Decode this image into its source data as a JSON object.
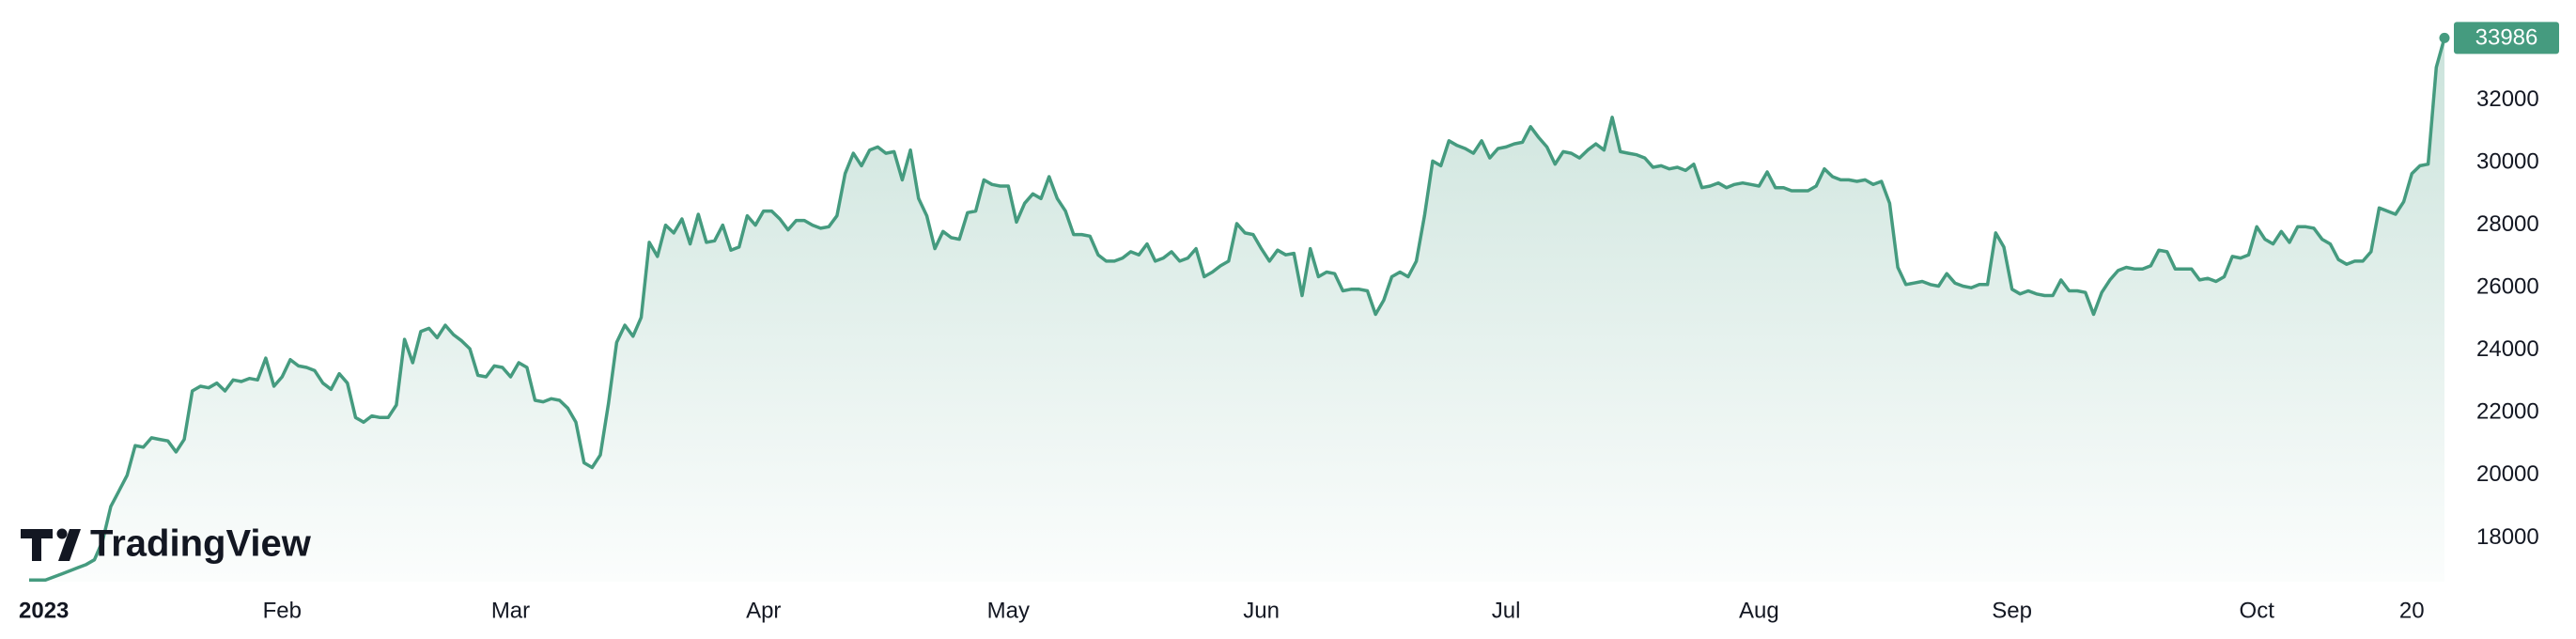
{
  "chart_data": {
    "type": "line",
    "watermark": "TradingView",
    "x": [
      0,
      1,
      2,
      3,
      4,
      5,
      6,
      7,
      8,
      9,
      10,
      11,
      12,
      13,
      14,
      15,
      16,
      17,
      18,
      19,
      20,
      21,
      22,
      23,
      24,
      25,
      26,
      27,
      28,
      29,
      30,
      31,
      32,
      33,
      34,
      35,
      36,
      37,
      38,
      39,
      40,
      41,
      42,
      43,
      44,
      45,
      46,
      47,
      48,
      49,
      50,
      51,
      52,
      53,
      54,
      55,
      56,
      57,
      58,
      59,
      60,
      61,
      62,
      63,
      64,
      65,
      66,
      67,
      68,
      69,
      70,
      71,
      72,
      73,
      74,
      75,
      76,
      77,
      78,
      79,
      80,
      81,
      82,
      83,
      84,
      85,
      86,
      87,
      88,
      89,
      90,
      91,
      92,
      93,
      94,
      95,
      96,
      97,
      98,
      99,
      100,
      101,
      102,
      103,
      104,
      105,
      106,
      107,
      108,
      109,
      110,
      111,
      112,
      113,
      114,
      115,
      116,
      117,
      118,
      119,
      120,
      121,
      122,
      123,
      124,
      125,
      126,
      127,
      128,
      129,
      130,
      131,
      132,
      133,
      134,
      135,
      136,
      137,
      138,
      139,
      140,
      141,
      142,
      143,
      144,
      145,
      146,
      147,
      148,
      149,
      150,
      151,
      152,
      153,
      154,
      155,
      156,
      157,
      158,
      159,
      160,
      161,
      162,
      163,
      164,
      165,
      166,
      167,
      168,
      169,
      170,
      171,
      172,
      173,
      174,
      175,
      176,
      177,
      178,
      179,
      180,
      181,
      182,
      183,
      184,
      185,
      186,
      187,
      188,
      189,
      190,
      191,
      192,
      193,
      194,
      195,
      196,
      197,
      198,
      199,
      200,
      201,
      202,
      203,
      204,
      205,
      206,
      207,
      208,
      209,
      210,
      211,
      212,
      213,
      214,
      215,
      216,
      217,
      218,
      219,
      220,
      221,
      222,
      223,
      224,
      225,
      226,
      227,
      228,
      229,
      230,
      231,
      232,
      233,
      234,
      235,
      236,
      237,
      238,
      239,
      240,
      241,
      242,
      243,
      244,
      245,
      246,
      247,
      248,
      249,
      250,
      251,
      252,
      253,
      254,
      255,
      256,
      257,
      258,
      259,
      260,
      261,
      262,
      263,
      264,
      265,
      266,
      267,
      268,
      269,
      270,
      271,
      272,
      273,
      274,
      275,
      276,
      277,
      278,
      279,
      280,
      281,
      282,
      283,
      284,
      285,
      286,
      287,
      288,
      289,
      290,
      291,
      292,
      293,
      294,
      295,
      296
    ],
    "series": [
      {
        "name": null,
        "color": "#459b7f",
        "values": [
          16650,
          16650,
          16650,
          16750,
          16850,
          16950,
          17050,
          17150,
          17300,
          17900,
          19000,
          19500,
          20000,
          20950,
          20900,
          21200,
          21150,
          21100,
          20750,
          21150,
          22700,
          22850,
          22800,
          22950,
          22700,
          23050,
          23000,
          23100,
          23050,
          23750,
          22850,
          23150,
          23700,
          23500,
          23450,
          23350,
          22950,
          22750,
          23250,
          22950,
          21850,
          21700,
          21900,
          21850,
          21850,
          22250,
          24350,
          23600,
          24600,
          24700,
          24400,
          24800,
          24500,
          24300,
          24050,
          23200,
          23150,
          23500,
          23450,
          23150,
          23600,
          23450,
          22400,
          22350,
          22450,
          22400,
          22150,
          21700,
          20400,
          20250,
          20650,
          22300,
          24250,
          24800,
          24450,
          25050,
          27450,
          27000,
          28000,
          27750,
          28200,
          27400,
          28350,
          27450,
          27500,
          28000,
          27200,
          27300,
          28300,
          28000,
          28450,
          28450,
          28200,
          27850,
          28150,
          28150,
          28000,
          27900,
          27950,
          28300,
          29650,
          30300,
          29900,
          30400,
          30500,
          30300,
          30350,
          29450,
          30400,
          28850,
          28300,
          27250,
          27800,
          27600,
          27550,
          28400,
          28450,
          29450,
          29300,
          29250,
          29250,
          28100,
          28700,
          29000,
          28850,
          29550,
          28850,
          28450,
          27700,
          27700,
          27650,
          27050,
          26850,
          26850,
          26950,
          27150,
          27050,
          27400,
          26850,
          26950,
          27150,
          26850,
          26950,
          27250,
          26350,
          26500,
          26700,
          26850,
          28050,
          27750,
          27700,
          27250,
          26850,
          27200,
          27050,
          27100,
          25750,
          27250,
          26350,
          26500,
          26450,
          25900,
          25950,
          25950,
          25900,
          25150,
          25600,
          26350,
          26500,
          26350,
          26850,
          28300,
          30050,
          29900,
          30700,
          30550,
          30450,
          30300,
          30700,
          30150,
          30450,
          30500,
          30600,
          30650,
          31150,
          30800,
          30500,
          29950,
          30350,
          30300,
          30150,
          30400,
          30600,
          30400,
          31450,
          30350,
          30300,
          30250,
          30150,
          29850,
          29900,
          29800,
          29850,
          29750,
          29950,
          29200,
          29250,
          29350,
          29200,
          29300,
          29350,
          29300,
          29250,
          29700,
          29200,
          29200,
          29100,
          29100,
          29100,
          29250,
          29800,
          29550,
          29450,
          29450,
          29400,
          29450,
          29300,
          29400,
          28700,
          26650,
          26100,
          26150,
          26200,
          26100,
          26050,
          26450,
          26150,
          26050,
          26000,
          26100,
          26100,
          27750,
          27300,
          25950,
          25800,
          25900,
          25800,
          25750,
          25750,
          26250,
          25900,
          25900,
          25850,
          25150,
          25850,
          26250,
          26550,
          26650,
          26600,
          26600,
          26700,
          27200,
          27150,
          26600,
          26600,
          26600,
          26250,
          26300,
          26200,
          26350,
          27000,
          26950,
          27050,
          27950,
          27550,
          27400,
          27800,
          27450,
          27950,
          27950,
          27900,
          27550,
          27400,
          26900,
          26750,
          26850,
          26850,
          27150,
          28550,
          28450,
          28350,
          28750,
          29650,
          29900,
          29950,
          33050,
          33986
        ]
      }
    ],
    "xlim": [
      -1.5,
      296
    ],
    "ylim": [
      16600,
      35200
    ],
    "xticks": [
      {
        "value": 0,
        "label": "2023"
      },
      {
        "value": 31,
        "label": "Feb"
      },
      {
        "value": 59,
        "label": "Mar"
      },
      {
        "value": 90,
        "label": "Apr"
      },
      {
        "value": 120,
        "label": "May"
      },
      {
        "value": 151,
        "label": "Jun"
      },
      {
        "value": 181,
        "label": "Jul"
      },
      {
        "value": 212,
        "label": "Aug"
      },
      {
        "value": 243,
        "label": "Sep"
      },
      {
        "value": 273,
        "label": "Oct"
      },
      {
        "value": 292,
        "label": "20"
      }
    ],
    "yticks": [
      18000,
      20000,
      22000,
      24000,
      26000,
      28000,
      30000,
      32000
    ],
    "grid": false
  }
}
